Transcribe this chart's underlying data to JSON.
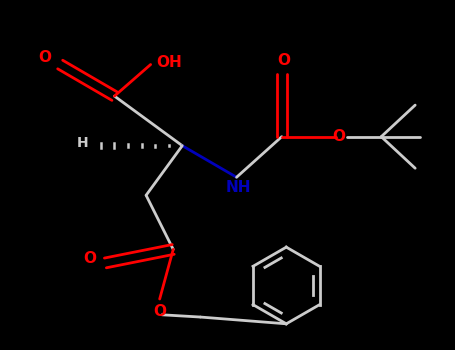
{
  "bg_color": "#000000",
  "oxygen_color": "#ff0000",
  "nitrogen_color": "#0000bb",
  "bond_color": "#cccccc",
  "figsize": [
    4.55,
    3.5
  ],
  "dpi": 100,
  "xlim": [
    0,
    10
  ],
  "ylim": [
    0,
    7.7
  ]
}
